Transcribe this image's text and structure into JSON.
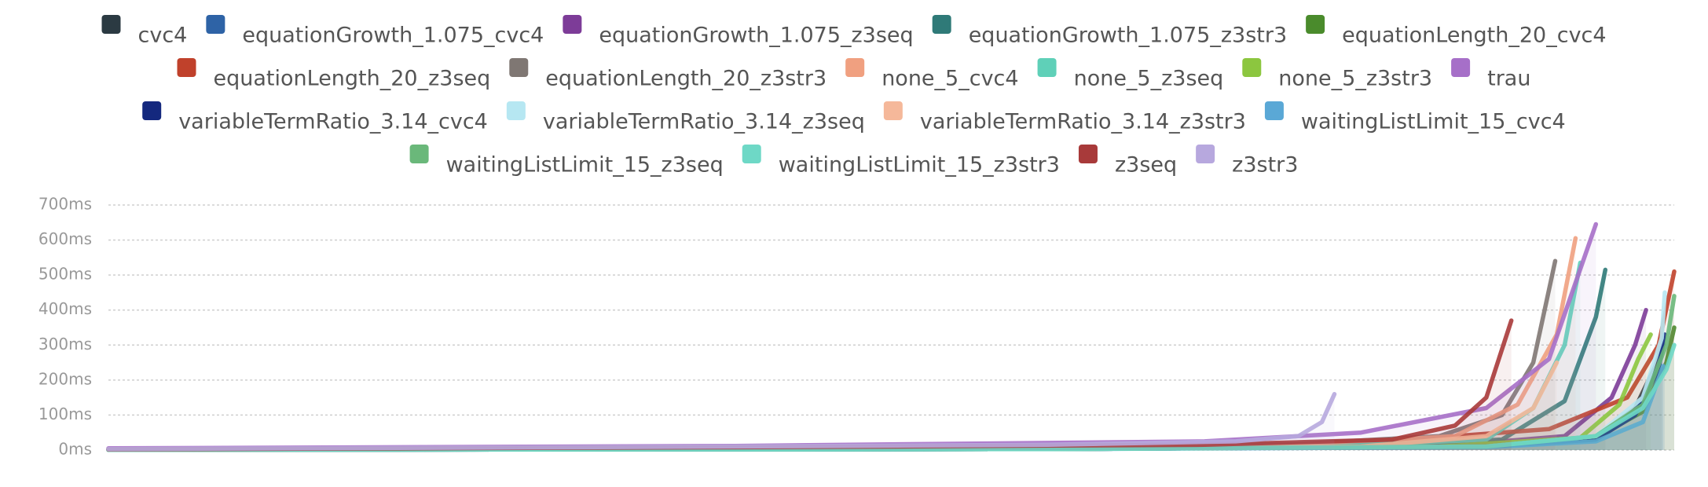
{
  "chart_data": {
    "type": "line",
    "ylim": [
      0,
      700
    ],
    "xlim": [
      0,
      100
    ],
    "yticks": [
      {
        "value": 0,
        "label": "0ms"
      },
      {
        "value": 100,
        "label": "100ms"
      },
      {
        "value": 200,
        "label": "200ms"
      },
      {
        "value": 300,
        "label": "300ms"
      },
      {
        "value": 400,
        "label": "400ms"
      },
      {
        "value": 500,
        "label": "500ms"
      },
      {
        "value": 600,
        "label": "600ms"
      },
      {
        "value": 700,
        "label": "700ms"
      }
    ],
    "grid": true,
    "legend": "top",
    "series": [
      {
        "name": "cvc4",
        "color": "#2b3a42",
        "x": [
          0,
          60,
          88,
          95,
          97.5,
          98.8,
          99.2
        ],
        "values": [
          1,
          3,
          10,
          35,
          120,
          240,
          300
        ]
      },
      {
        "name": "equationGrowth_1.075_cvc4",
        "color": "#2e63a6",
        "x": [
          0,
          60,
          88,
          95,
          97.5,
          99,
          99.3
        ],
        "values": [
          1,
          3,
          10,
          30,
          110,
          240,
          320
        ]
      },
      {
        "name": "equationGrowth_1.075_z3seq",
        "color": "#7d3c98",
        "x": [
          0,
          60,
          85,
          93,
          96,
          97.5,
          98.2
        ],
        "values": [
          1,
          4,
          10,
          40,
          150,
          300,
          400
        ]
      },
      {
        "name": "equationGrowth_1.075_z3str3",
        "color": "#2f7a78",
        "x": [
          0,
          50,
          80,
          89,
          93,
          95,
          95.6
        ],
        "values": [
          1,
          4,
          10,
          30,
          140,
          380,
          515
        ]
      },
      {
        "name": "equationLength_20_cvc4",
        "color": "#4a8b2c",
        "x": [
          0,
          60,
          88,
          95,
          98,
          99.5,
          100
        ],
        "values": [
          1,
          3,
          10,
          35,
          110,
          250,
          350
        ]
      },
      {
        "name": "equationLength_20_z3seq",
        "color": "#c0412b",
        "x": [
          0,
          60,
          80,
          92,
          97,
          99,
          100
        ],
        "values": [
          2,
          8,
          20,
          60,
          150,
          300,
          510
        ]
      },
      {
        "name": "equationLength_20_z3str3",
        "color": "#7f7773",
        "x": [
          0,
          50,
          75,
          85,
          89,
          91,
          92.4
        ],
        "values": [
          2,
          6,
          15,
          40,
          100,
          250,
          540
        ]
      },
      {
        "name": "none_5_cvc4",
        "color": "#f0a080",
        "x": [
          0,
          50,
          75,
          86,
          90,
          92.5,
          93.7
        ],
        "values": [
          2,
          6,
          12,
          40,
          130,
          330,
          605
        ]
      },
      {
        "name": "none_5_z3seq",
        "color": "#5fd0b8",
        "x": [
          0,
          50,
          78,
          88,
          91,
          93,
          94
        ],
        "values": [
          1,
          4,
          10,
          30,
          120,
          300,
          535
        ]
      },
      {
        "name": "none_5_z3str3",
        "color": "#8cc63f",
        "x": [
          0,
          60,
          85,
          94,
          96.5,
          97.7,
          98.5
        ],
        "values": [
          1,
          4,
          10,
          35,
          130,
          260,
          330
        ]
      },
      {
        "name": "trau",
        "color": "#a66fc8",
        "x": [
          0,
          40,
          70,
          80,
          88,
          92,
          95
        ],
        "values": [
          5,
          12,
          25,
          50,
          120,
          260,
          645
        ]
      },
      {
        "name": "variableTermRatio_3.14_cvc4",
        "color": "#14287e",
        "x": [
          0,
          60,
          88,
          95,
          97.5,
          99,
          99.4
        ],
        "values": [
          1,
          3,
          10,
          30,
          100,
          230,
          330
        ]
      },
      {
        "name": "variableTermRatio_3.14_z3seq",
        "color": "#b6e7f2",
        "x": [
          0,
          60,
          88,
          95,
          98,
          99.2,
          99.4
        ],
        "values": [
          1,
          3,
          10,
          40,
          150,
          320,
          450
        ]
      },
      {
        "name": "variableTermRatio_3.14_z3str3",
        "color": "#f5b89a",
        "x": [
          0,
          50,
          80,
          88,
          91,
          92.5
        ],
        "values": [
          1,
          4,
          10,
          40,
          120,
          250
        ]
      },
      {
        "name": "waitingListLimit_15_cvc4",
        "color": "#5aa8d6",
        "x": [
          0,
          60,
          88,
          95,
          98,
          99.3
        ],
        "values": [
          1,
          3,
          8,
          25,
          80,
          240
        ]
      },
      {
        "name": "waitingListLimit_15_z3seq",
        "color": "#6ab87a",
        "x": [
          0,
          60,
          88,
          95,
          98,
          99.5,
          100
        ],
        "values": [
          1,
          3,
          10,
          40,
          130,
          300,
          440
        ]
      },
      {
        "name": "waitingListLimit_15_z3str3",
        "color": "#6ed8c6",
        "x": [
          0,
          60,
          88,
          95,
          98,
          99.5,
          100
        ],
        "values": [
          1,
          3,
          10,
          40,
          120,
          230,
          300
        ]
      },
      {
        "name": "z3seq",
        "color": "#a83a3a",
        "x": [
          0,
          40,
          70,
          82,
          86,
          88,
          89.6
        ],
        "values": [
          2,
          8,
          15,
          30,
          70,
          150,
          370
        ]
      },
      {
        "name": "z3str3",
        "color": "#b7a8de",
        "x": [
          0,
          30,
          60,
          72,
          76,
          77.5,
          78.3
        ],
        "values": [
          3,
          8,
          15,
          25,
          40,
          80,
          160
        ]
      }
    ]
  }
}
